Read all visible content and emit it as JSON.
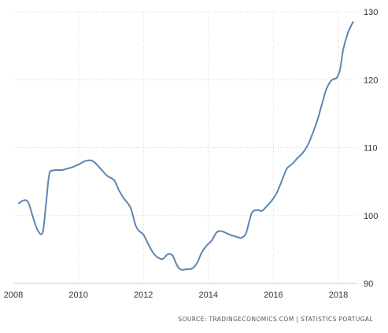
{
  "chart_data": {
    "type": "line",
    "xlim": [
      2008,
      2018.6
    ],
    "ylim": [
      90,
      130
    ],
    "x_ticks": [
      "2008",
      "2010",
      "2012",
      "2014",
      "2016",
      "2018"
    ],
    "y_ticks": [
      "90",
      "100",
      "110",
      "120",
      "130"
    ],
    "grid": true,
    "line_color": "#5b86b2",
    "series": [
      {
        "x": [
          2008.17,
          2008.3,
          2008.45,
          2008.6,
          2008.75,
          2008.9,
          2009.0,
          2009.1,
          2009.2,
          2009.35,
          2009.5,
          2009.65,
          2009.8,
          2010.0,
          2010.2,
          2010.4,
          2010.55,
          2010.7,
          2010.9,
          2011.1,
          2011.25,
          2011.4,
          2011.6,
          2011.75,
          2011.85,
          2012.0,
          2012.15,
          2012.3,
          2012.45,
          2012.6,
          2012.75,
          2012.9,
          2013.0,
          2013.1,
          2013.2,
          2013.35,
          2013.5,
          2013.65,
          2013.8,
          2013.95,
          2014.1,
          2014.25,
          2014.4,
          2014.55,
          2014.7,
          2014.85,
          2015.0,
          2015.15,
          2015.25,
          2015.35,
          2015.5,
          2015.65,
          2015.8,
          2015.95,
          2016.1,
          2016.25,
          2016.4,
          2016.5,
          2016.6,
          2016.75,
          2016.9,
          2017.05,
          2017.2,
          2017.35,
          2017.5,
          2017.62,
          2017.75,
          2017.85,
          2017.95,
          2018.05,
          2018.15,
          2018.3,
          2018.45
        ],
        "y": [
          101.8,
          102.2,
          102.0,
          99.8,
          97.8,
          97.5,
          101.5,
          106.0,
          106.6,
          106.7,
          106.7,
          106.9,
          107.1,
          107.5,
          108.0,
          108.1,
          107.6,
          106.8,
          105.8,
          105.2,
          103.7,
          102.5,
          101.2,
          98.7,
          97.8,
          97.2,
          95.8,
          94.5,
          93.8,
          93.6,
          94.3,
          94.1,
          93.0,
          92.2,
          92.0,
          92.1,
          92.2,
          93.0,
          94.6,
          95.6,
          96.3,
          97.5,
          97.7,
          97.4,
          97.1,
          96.9,
          96.7,
          97.3,
          99.0,
          100.5,
          100.8,
          100.7,
          101.4,
          102.2,
          103.3,
          105.0,
          106.8,
          107.3,
          107.7,
          108.5,
          109.2,
          110.3,
          112.0,
          114.0,
          116.5,
          118.5,
          119.7,
          120.1,
          120.3,
          121.5,
          124.5,
          127.0,
          128.5
        ]
      }
    ]
  },
  "footer": {
    "source": "SOURCE: TRADINGECONOMICS.COM | STATISTICS PORTUGAL"
  }
}
